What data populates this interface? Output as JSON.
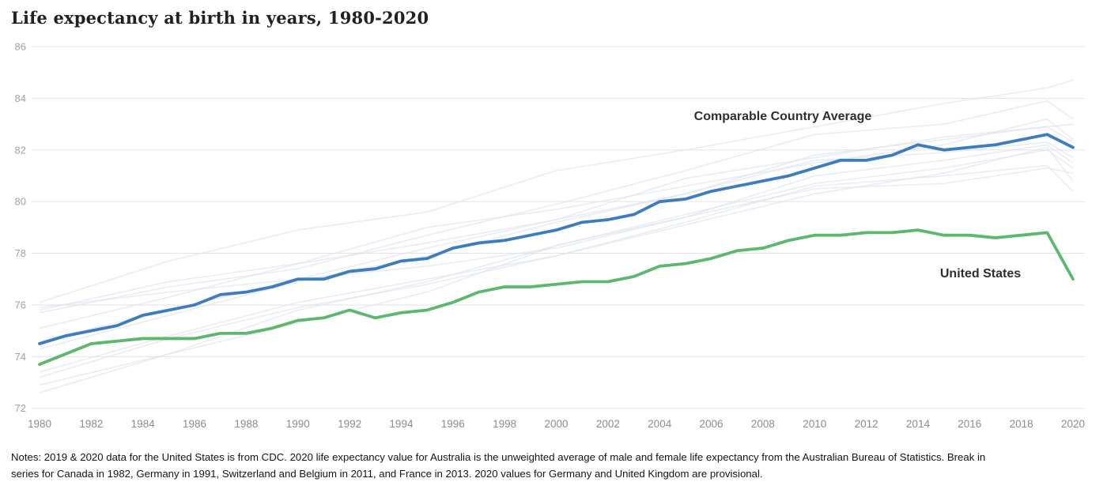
{
  "title": "Life expectancy at birth in years, 1980-2020",
  "notes": {
    "lines": [
      "Notes: 2019 & 2020 data for the United States is from CDC. 2020 life expectancy value for Australia is the unweighted average of male and female life expectancy from the Australian Bureau of Statistics. Break in",
      "series for Canada in 1982, Germany in 1991, Switzerland and Belgium in 2011, and France in 2013. 2020 values for Germany and United Kingdom are provisional."
    ]
  },
  "colors": {
    "cca_blue": "#3d7cbf",
    "us_green": "#5cb86e",
    "background_line": "#dce3ec",
    "gridline": "#e3e3e3",
    "y_tick_label": "#a2a2a2",
    "x_tick_label": "#8c8c8c",
    "series_label_text": "#2e2e2e"
  },
  "chart_data": {
    "type": "line",
    "title": "Life expectancy at birth in years, 1980-2020",
    "xlabel": "",
    "ylabel": "",
    "xlim": [
      1980,
      2020
    ],
    "ylim": [
      72,
      86
    ],
    "grid": "horizontal",
    "legend_position": "inline-annotations",
    "x_ticks": [
      1980,
      1982,
      1984,
      1986,
      1988,
      1990,
      1992,
      1994,
      1996,
      1998,
      2000,
      2002,
      2004,
      2006,
      2008,
      2010,
      2012,
      2014,
      2016,
      2018,
      2020
    ],
    "y_ticks": [
      72,
      74,
      76,
      78,
      80,
      82,
      84,
      86
    ],
    "years": [
      1980,
      1981,
      1982,
      1983,
      1984,
      1985,
      1986,
      1987,
      1988,
      1989,
      1990,
      1991,
      1992,
      1993,
      1994,
      1995,
      1996,
      1997,
      1998,
      1999,
      2000,
      2001,
      2002,
      2003,
      2004,
      2005,
      2006,
      2007,
      2008,
      2009,
      2010,
      2011,
      2012,
      2013,
      2014,
      2015,
      2016,
      2017,
      2018,
      2019,
      2020
    ],
    "series": [
      {
        "name": "Comparable Country Average",
        "color": "#3d7cbf",
        "values": [
          74.5,
          74.8,
          75.0,
          75.2,
          75.6,
          75.8,
          76.0,
          76.4,
          76.5,
          76.7,
          77.0,
          77.0,
          77.3,
          77.4,
          77.7,
          77.8,
          78.2,
          78.4,
          78.5,
          78.7,
          78.9,
          79.2,
          79.3,
          79.5,
          80.0,
          80.1,
          80.4,
          80.6,
          80.8,
          81.0,
          81.3,
          81.6,
          81.6,
          81.8,
          82.2,
          82.0,
          82.1,
          82.2,
          82.4,
          82.6,
          82.1
        ]
      },
      {
        "name": "United States",
        "color": "#5cb86e",
        "values": [
          73.7,
          74.1,
          74.5,
          74.6,
          74.7,
          74.7,
          74.7,
          74.9,
          74.9,
          75.1,
          75.4,
          75.5,
          75.8,
          75.5,
          75.7,
          75.8,
          76.1,
          76.5,
          76.7,
          76.7,
          76.8,
          76.9,
          76.9,
          77.1,
          77.5,
          77.6,
          77.8,
          78.1,
          78.2,
          78.5,
          78.7,
          78.7,
          78.8,
          78.8,
          78.9,
          78.7,
          78.7,
          78.6,
          78.7,
          78.8,
          77.0
        ]
      }
    ],
    "background_series": {
      "description": "Unlabeled faint lines for individual comparable countries",
      "color": "#dce3ec",
      "anchor_years": [
        1980,
        1985,
        1990,
        1995,
        2000,
        2005,
        2010,
        2015,
        2019,
        2020
      ],
      "lines": [
        {
          "values": [
            76.1,
            77.7,
            78.9,
            79.6,
            81.2,
            82.0,
            82.9,
            83.8,
            84.4,
            84.7
          ]
        },
        {
          "values": [
            75.7,
            76.7,
            77.4,
            78.7,
            79.9,
            81.2,
            82.6,
            83.0,
            83.9,
            83.2
          ]
        },
        {
          "values": [
            74.6,
            75.8,
            77.0,
            78.2,
            79.3,
            80.9,
            81.7,
            82.5,
            82.9,
            83.0
          ]
        },
        {
          "values": [
            74.3,
            75.6,
            76.9,
            77.9,
            79.2,
            80.3,
            81.8,
            82.4,
            82.9,
            82.3
          ]
        },
        {
          "values": [
            75.8,
            76.9,
            77.6,
            79.0,
            79.7,
            80.6,
            81.5,
            82.2,
            83.2,
            82.4
          ]
        },
        {
          "values": [
            75.1,
            76.3,
            77.6,
            78.4,
            79.3,
            80.3,
            81.6,
            81.9,
            82.3,
            81.7
          ]
        },
        {
          "values": [
            75.9,
            76.5,
            77.0,
            77.5,
            78.2,
            79.4,
            81.0,
            81.6,
            82.2,
            81.5
          ]
        },
        {
          "values": [
            72.6,
            74.1,
            75.8,
            76.9,
            78.3,
            79.5,
            80.7,
            81.3,
            82.0,
            81.3
          ]
        },
        {
          "values": [
            73.4,
            74.8,
            76.1,
            77.0,
            77.9,
            79.1,
            80.3,
            81.1,
            82.1,
            80.8
          ]
        },
        {
          "values": [
            72.9,
            74.1,
            75.3,
            76.5,
            78.3,
            79.4,
            80.5,
            80.7,
            81.3,
            81.1
          ]
        },
        {
          "values": [
            73.2,
            74.7,
            75.9,
            76.8,
            77.9,
            79.2,
            80.6,
            81.0,
            81.4,
            80.4
          ]
        }
      ]
    }
  }
}
